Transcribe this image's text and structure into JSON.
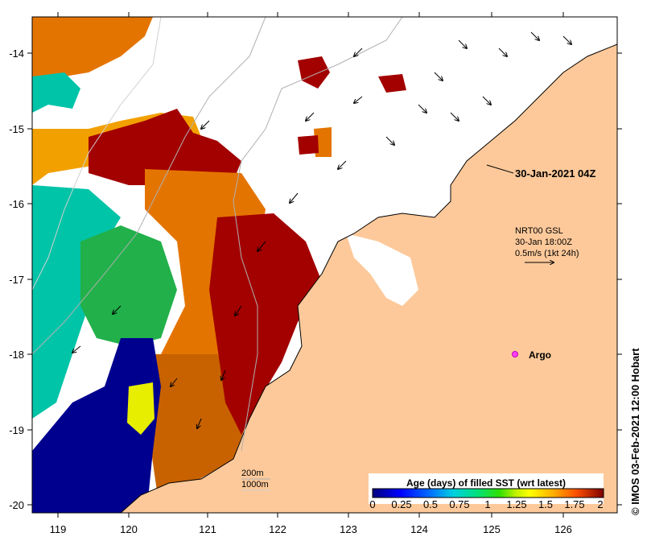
{
  "map": {
    "x_ticks": [
      "119",
      "120",
      "121",
      "122",
      "123",
      "124",
      "125",
      "126"
    ],
    "y_ticks": [
      "-14",
      "-15",
      "-16",
      "-17",
      "-18",
      "-19",
      "-20"
    ],
    "timestamp_label": "30-Jan-2021 04Z",
    "current_label_line1": "NRT00 GSL",
    "current_label_line2": "30-Jan 18:00Z",
    "current_label_line3": "0.5m/s (1kt 24h)",
    "argo_label": "Argo",
    "contour_200": "200m",
    "contour_1000": "1000m",
    "colorbar_title": "Age (days) of filled SST (wrt latest)",
    "colorbar_ticks": [
      "0",
      "0.25",
      "0.5",
      "0.75",
      "1",
      "1.25",
      "1.5",
      "1.75",
      "2"
    ],
    "credit": "IMOS 03-Feb-2021 12:00 Hobart",
    "colors": {
      "land": "#fdc99a",
      "age_0": "#00008f",
      "age_0_5": "#00c4a8",
      "age_1": "#22d622",
      "age_1_25": "#e8ee00",
      "age_1_5": "#f2b000",
      "age_1_75": "#e47400",
      "age_2": "#a30000"
    }
  }
}
